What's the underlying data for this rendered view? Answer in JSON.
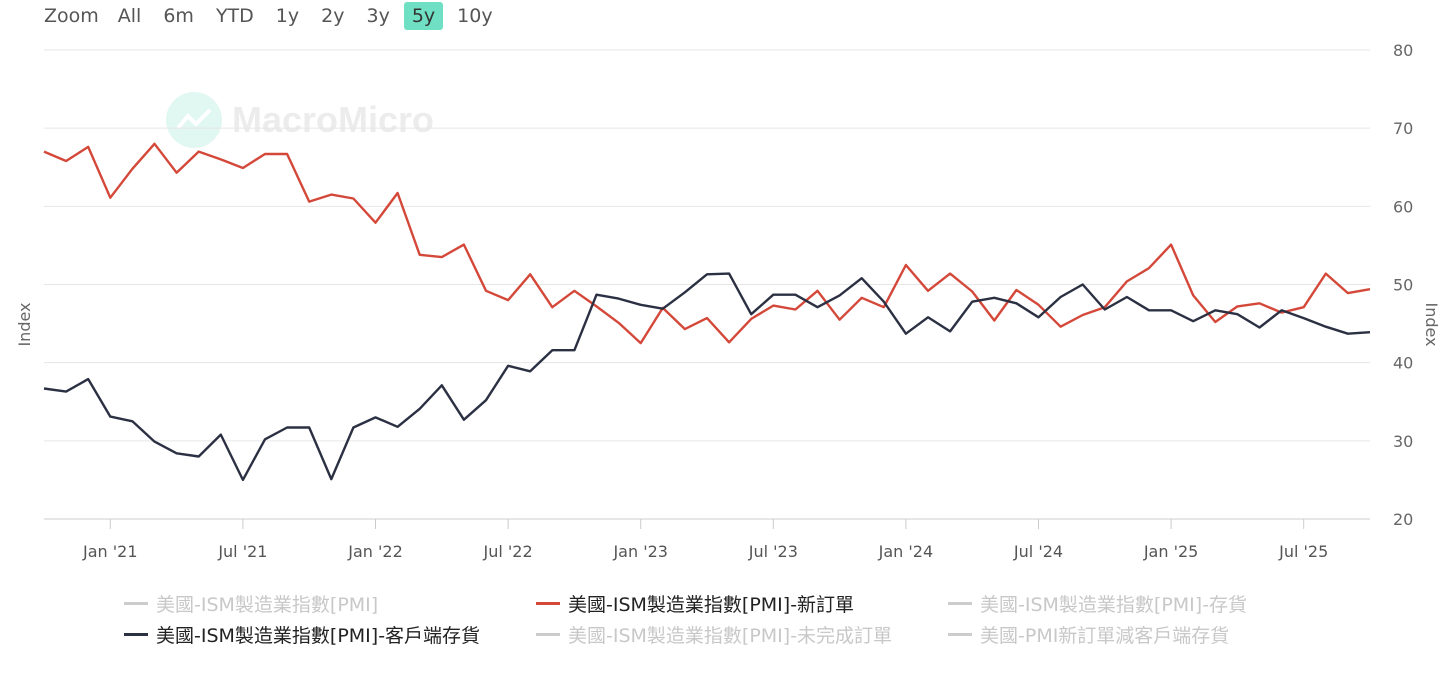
{
  "zoom": {
    "label": "Zoom",
    "buttons": [
      "All",
      "6m",
      "YTD",
      "1y",
      "2y",
      "3y",
      "5y",
      "10y"
    ],
    "active": "5y"
  },
  "watermark": "MacroMicro",
  "colors": {
    "new_orders": "#d4483a",
    "customer_inventory": "#2b3043",
    "inactive": "#cccccc",
    "grid": "#e6e6e6",
    "active_zoom": "#6fe0c3"
  },
  "chart_data": {
    "type": "line",
    "ylabel_left": "Index",
    "ylabel_right": "Index",
    "ylim": [
      20,
      80
    ],
    "yticks": [
      20,
      30,
      40,
      50,
      60,
      70,
      80
    ],
    "x_start": "2020-10",
    "x_end": "2025-10",
    "xticks": [
      {
        "date": "2021-01",
        "label": "Jan '21"
      },
      {
        "date": "2021-07",
        "label": "Jul '21"
      },
      {
        "date": "2022-01",
        "label": "Jan '22"
      },
      {
        "date": "2022-07",
        "label": "Jul '22"
      },
      {
        "date": "2023-01",
        "label": "Jan '23"
      },
      {
        "date": "2023-07",
        "label": "Jul '23"
      },
      {
        "date": "2024-01",
        "label": "Jan '24"
      },
      {
        "date": "2024-07",
        "label": "Jul '24"
      },
      {
        "date": "2025-01",
        "label": "Jan '25"
      },
      {
        "date": "2025-07",
        "label": "Jul '25"
      }
    ],
    "x": [
      "2020-10",
      "2020-11",
      "2020-12",
      "2021-01",
      "2021-02",
      "2021-03",
      "2021-04",
      "2021-05",
      "2021-06",
      "2021-07",
      "2021-08",
      "2021-09",
      "2021-10",
      "2021-11",
      "2021-12",
      "2022-01",
      "2022-02",
      "2022-03",
      "2022-04",
      "2022-05",
      "2022-06",
      "2022-07",
      "2022-08",
      "2022-09",
      "2022-10",
      "2022-11",
      "2022-12",
      "2023-01",
      "2023-02",
      "2023-03",
      "2023-04",
      "2023-05",
      "2023-06",
      "2023-07",
      "2023-08",
      "2023-09",
      "2023-10",
      "2023-11",
      "2023-12",
      "2024-01",
      "2024-02",
      "2024-03",
      "2024-04",
      "2024-05",
      "2024-06",
      "2024-07",
      "2024-08",
      "2024-09",
      "2024-10",
      "2024-11",
      "2024-12",
      "2025-01",
      "2025-02",
      "2025-03",
      "2025-04",
      "2025-05",
      "2025-06",
      "2025-07",
      "2025-08",
      "2025-09",
      "2025-10"
    ],
    "series": [
      {
        "name": "美國-ISM製造業指數[PMI]-新訂單",
        "values": [
          67.0,
          65.8,
          67.6,
          61.1,
          64.8,
          68.0,
          64.3,
          67.0,
          66.0,
          64.9,
          66.7,
          66.7,
          60.6,
          61.5,
          61.0,
          57.9,
          61.7,
          53.8,
          53.5,
          55.1,
          49.2,
          48.0,
          51.3,
          47.1,
          49.2,
          47.2,
          45.1,
          42.5,
          47.0,
          44.3,
          45.7,
          42.6,
          45.6,
          47.3,
          46.8,
          49.2,
          45.5,
          48.3,
          47.1,
          52.5,
          49.2,
          51.4,
          49.1,
          45.4,
          49.3,
          47.4,
          44.6,
          46.1,
          47.1,
          50.4,
          52.1,
          55.1,
          48.6,
          45.2,
          47.2,
          47.6,
          46.4,
          47.1,
          51.4,
          48.9,
          49.4
        ]
      },
      {
        "name": "美國-ISM製造業指數[PMI]-客戶端存貨",
        "values": [
          36.7,
          36.3,
          37.9,
          33.1,
          32.5,
          29.9,
          28.4,
          28.0,
          30.8,
          25.0,
          30.2,
          31.7,
          31.7,
          25.1,
          31.7,
          33.0,
          31.8,
          34.1,
          37.1,
          32.7,
          35.2,
          39.6,
          38.9,
          41.6,
          41.6,
          48.7,
          48.2,
          47.4,
          46.9,
          49.0,
          51.3,
          51.4,
          46.2,
          48.7,
          48.7,
          47.1,
          48.6,
          50.8,
          47.8,
          43.7,
          45.8,
          44.0,
          47.8,
          48.3,
          47.6,
          45.8,
          48.4,
          50.0,
          46.8,
          48.4,
          46.7,
          46.7,
          45.3,
          46.7,
          46.2,
          44.5,
          46.7,
          45.7,
          44.6,
          43.7,
          43.9
        ]
      }
    ],
    "legend": [
      {
        "label": "美國-ISM製造業指數[PMI]",
        "active": false
      },
      {
        "label": "美國-ISM製造業指數[PMI]-新訂單",
        "active": true
      },
      {
        "label": "美國-ISM製造業指數[PMI]-存貨",
        "active": false
      },
      {
        "label": "美國-ISM製造業指數[PMI]-客戶端存貨",
        "active": true
      },
      {
        "label": "美國-ISM製造業指數[PMI]-未完成訂單",
        "active": false
      },
      {
        "label": "美國-PMI新訂單減客戶端存貨",
        "active": false
      }
    ]
  }
}
